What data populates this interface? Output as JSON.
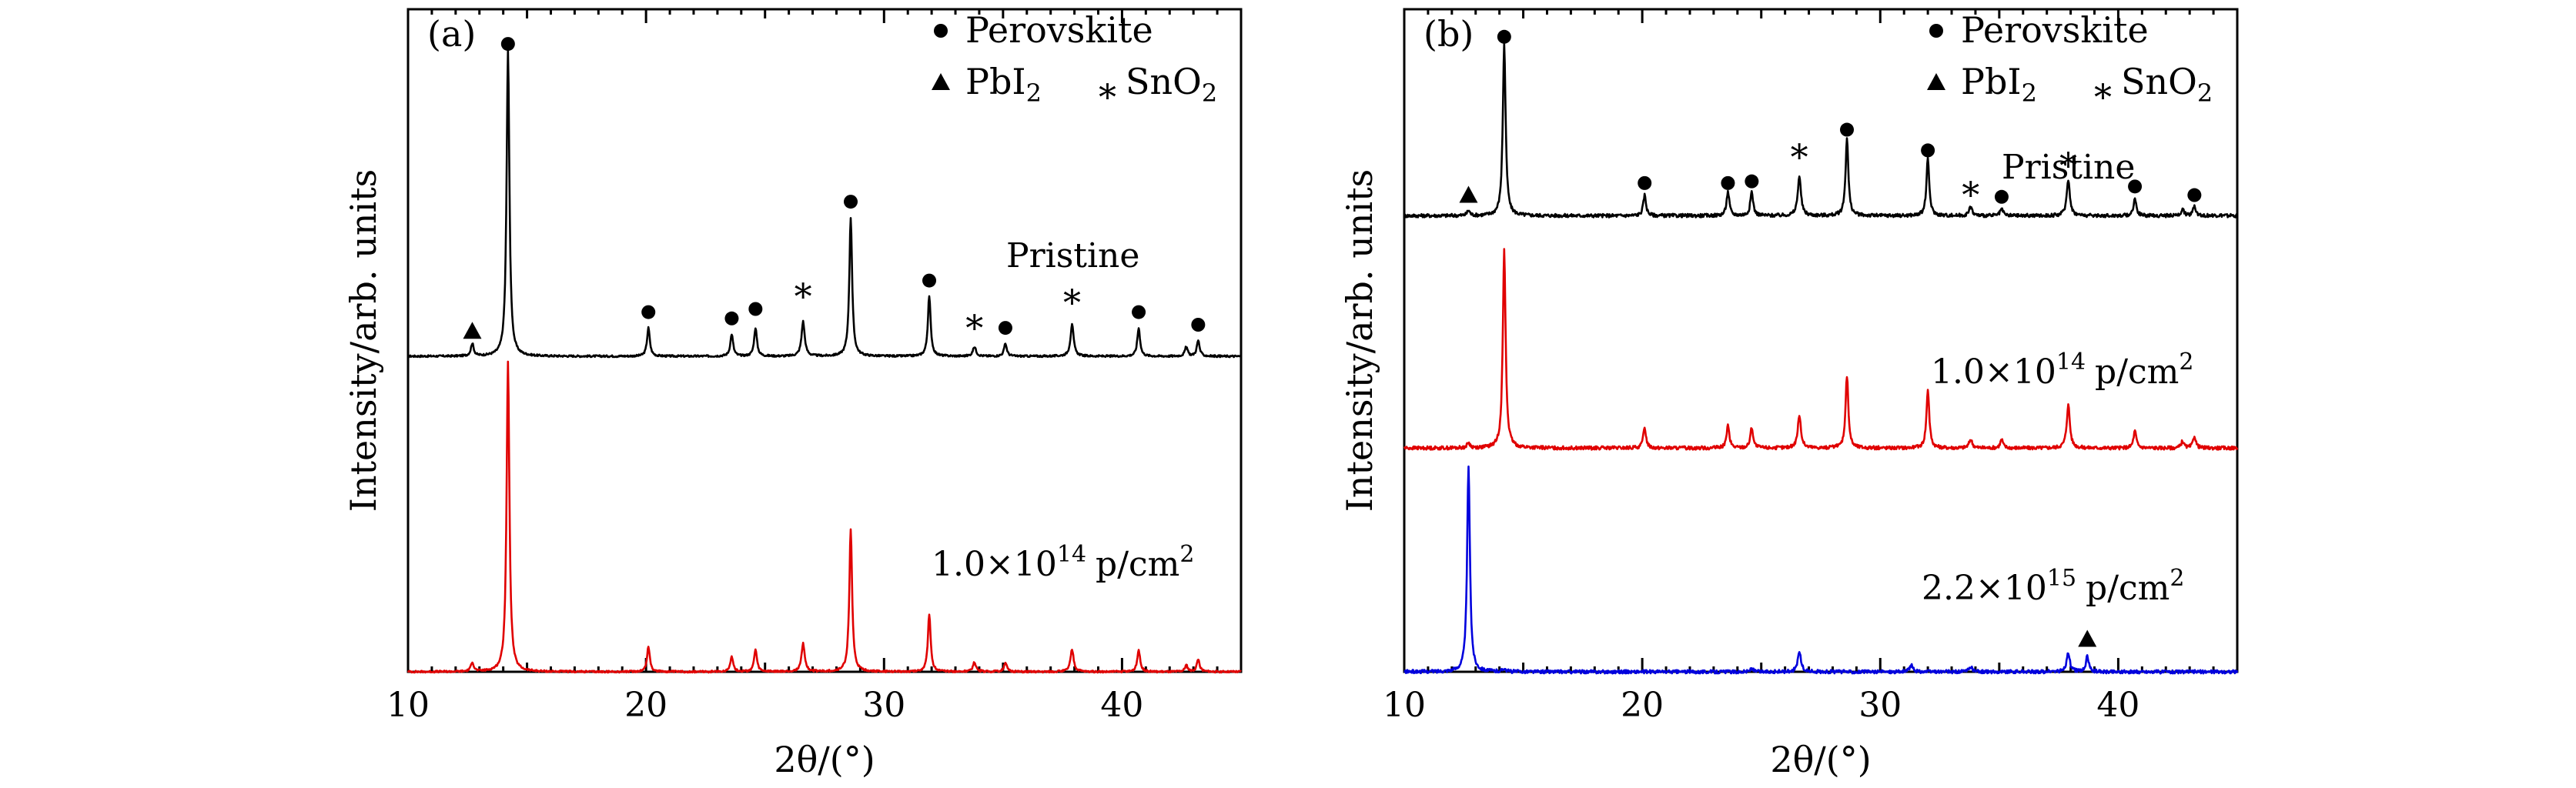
{
  "chart_data": [
    {
      "panel": "(a)",
      "type": "line",
      "xlabel": "2θ/(°)",
      "ylabel": "Intensity/arb. units",
      "xlim": [
        10,
        45
      ],
      "ylim": [
        0,
        2.1
      ],
      "xticks": [
        10,
        20,
        30,
        40
      ],
      "legend": {
        "placement": "top-right",
        "entries": [
          {
            "marker": "circle",
            "label": "Perovskite"
          },
          {
            "marker": "triangle",
            "label": "PbI",
            "subscript": "2"
          },
          {
            "marker": "asterisk",
            "label": "SnO",
            "subscript": "2"
          }
        ]
      },
      "series": [
        {
          "name": "Pristine",
          "label_parts": {
            "text": "Pristine"
          },
          "color": "#000000",
          "baseline": 1.0,
          "noise": 0.003,
          "peaks": [
            {
              "x": 12.7,
              "h": 0.04,
              "w": 0.07
            },
            {
              "x": 14.2,
              "h": 0.97,
              "w": 0.07
            },
            {
              "x": 20.1,
              "h": 0.09,
              "w": 0.07
            },
            {
              "x": 23.6,
              "h": 0.07,
              "w": 0.07
            },
            {
              "x": 24.6,
              "h": 0.09,
              "w": 0.07
            },
            {
              "x": 26.6,
              "h": 0.11,
              "w": 0.08
            },
            {
              "x": 28.6,
              "h": 0.44,
              "w": 0.07
            },
            {
              "x": 31.9,
              "h": 0.19,
              "w": 0.07
            },
            {
              "x": 33.8,
              "h": 0.03,
              "w": 0.08
            },
            {
              "x": 35.1,
              "h": 0.04,
              "w": 0.07
            },
            {
              "x": 37.9,
              "h": 0.1,
              "w": 0.08
            },
            {
              "x": 40.7,
              "h": 0.09,
              "w": 0.07
            },
            {
              "x": 42.7,
              "h": 0.03,
              "w": 0.07
            },
            {
              "x": 43.2,
              "h": 0.05,
              "w": 0.07
            }
          ],
          "markers": [
            {
              "x": 12.7,
              "y": 1.08,
              "type": "triangle"
            },
            {
              "x": 14.2,
              "y": 1.99,
              "type": "circle"
            },
            {
              "x": 20.1,
              "y": 1.14,
              "type": "circle"
            },
            {
              "x": 23.6,
              "y": 1.12,
              "type": "circle"
            },
            {
              "x": 24.6,
              "y": 1.15,
              "type": "circle"
            },
            {
              "x": 26.6,
              "y": 1.2,
              "type": "asterisk"
            },
            {
              "x": 28.6,
              "y": 1.49,
              "type": "circle"
            },
            {
              "x": 31.9,
              "y": 1.24,
              "type": "circle"
            },
            {
              "x": 33.8,
              "y": 1.1,
              "type": "asterisk"
            },
            {
              "x": 35.1,
              "y": 1.09,
              "type": "circle"
            },
            {
              "x": 37.9,
              "y": 1.18,
              "type": "asterisk"
            },
            {
              "x": 40.7,
              "y": 1.14,
              "type": "circle"
            },
            {
              "x": 43.2,
              "y": 1.1,
              "type": "circle"
            }
          ]
        },
        {
          "name": "1.0×10^14 p/cm^2",
          "label_parts": {
            "mantissa": "1.0",
            "times": "×",
            "base": "10",
            "exponent": "14",
            "unit": "p/cm",
            "unit_exp": "2"
          },
          "color": "#e00000",
          "baseline": 0.0,
          "noise": 0.003,
          "peaks": [
            {
              "x": 12.7,
              "h": 0.03,
              "w": 0.07
            },
            {
              "x": 14.2,
              "h": 0.98,
              "w": 0.07
            },
            {
              "x": 20.1,
              "h": 0.08,
              "w": 0.07
            },
            {
              "x": 23.6,
              "h": 0.05,
              "w": 0.07
            },
            {
              "x": 24.6,
              "h": 0.07,
              "w": 0.07
            },
            {
              "x": 26.6,
              "h": 0.09,
              "w": 0.08
            },
            {
              "x": 28.6,
              "h": 0.45,
              "w": 0.07
            },
            {
              "x": 31.9,
              "h": 0.18,
              "w": 0.07
            },
            {
              "x": 33.8,
              "h": 0.03,
              "w": 0.08
            },
            {
              "x": 35.1,
              "h": 0.03,
              "w": 0.07
            },
            {
              "x": 37.9,
              "h": 0.07,
              "w": 0.08
            },
            {
              "x": 40.7,
              "h": 0.07,
              "w": 0.07
            },
            {
              "x": 42.7,
              "h": 0.02,
              "w": 0.07
            },
            {
              "x": 43.2,
              "h": 0.04,
              "w": 0.07
            }
          ],
          "markers": []
        }
      ]
    },
    {
      "panel": "(b)",
      "type": "line",
      "xlabel": "2θ/(°)",
      "ylabel": "Intensity/arb. units",
      "xlim": [
        10,
        45
      ],
      "ylim": [
        0,
        3.85
      ],
      "xticks": [
        10,
        20,
        30,
        40
      ],
      "legend": {
        "placement": "top-right",
        "entries": [
          {
            "marker": "circle",
            "label": "Perovskite"
          },
          {
            "marker": "triangle",
            "label": "PbI",
            "subscript": "2"
          },
          {
            "marker": "asterisk",
            "label": "SnO",
            "subscript": "2"
          }
        ]
      },
      "series": [
        {
          "name": "Pristine",
          "label_parts": {
            "text": "Pristine"
          },
          "color": "#000000",
          "baseline": 2.65,
          "noise": 0.01,
          "peaks": [
            {
              "x": 12.7,
              "h": 0.03,
              "w": 0.07
            },
            {
              "x": 14.2,
              "h": 1.0,
              "w": 0.07
            },
            {
              "x": 20.1,
              "h": 0.12,
              "w": 0.07
            },
            {
              "x": 23.6,
              "h": 0.14,
              "w": 0.07
            },
            {
              "x": 24.6,
              "h": 0.14,
              "w": 0.07
            },
            {
              "x": 26.6,
              "h": 0.23,
              "w": 0.08
            },
            {
              "x": 28.6,
              "h": 0.45,
              "w": 0.07
            },
            {
              "x": 32.0,
              "h": 0.33,
              "w": 0.07
            },
            {
              "x": 33.8,
              "h": 0.05,
              "w": 0.08
            },
            {
              "x": 35.1,
              "h": 0.04,
              "w": 0.07
            },
            {
              "x": 37.9,
              "h": 0.21,
              "w": 0.08
            },
            {
              "x": 40.7,
              "h": 0.1,
              "w": 0.07
            },
            {
              "x": 42.7,
              "h": 0.04,
              "w": 0.07
            },
            {
              "x": 43.2,
              "h": 0.06,
              "w": 0.07
            }
          ],
          "markers": [
            {
              "x": 12.7,
              "y": 2.77,
              "type": "triangle"
            },
            {
              "x": 14.2,
              "y": 3.69,
              "type": "circle"
            },
            {
              "x": 20.1,
              "y": 2.84,
              "type": "circle"
            },
            {
              "x": 23.6,
              "y": 2.84,
              "type": "circle"
            },
            {
              "x": 24.6,
              "y": 2.85,
              "type": "circle"
            },
            {
              "x": 26.6,
              "y": 3.01,
              "type": "asterisk"
            },
            {
              "x": 28.6,
              "y": 3.15,
              "type": "circle"
            },
            {
              "x": 32.0,
              "y": 3.03,
              "type": "circle"
            },
            {
              "x": 33.8,
              "y": 2.79,
              "type": "asterisk"
            },
            {
              "x": 35.1,
              "y": 2.76,
              "type": "circle"
            },
            {
              "x": 37.9,
              "y": 2.96,
              "type": "asterisk"
            },
            {
              "x": 40.7,
              "y": 2.82,
              "type": "circle"
            },
            {
              "x": 43.2,
              "y": 2.77,
              "type": "circle"
            }
          ]
        },
        {
          "name": "1.0×10^14 p/cm^2",
          "label_parts": {
            "mantissa": "1.0",
            "times": "×",
            "base": "10",
            "exponent": "14",
            "unit": "p/cm",
            "unit_exp": "2"
          },
          "color": "#e00000",
          "baseline": 1.3,
          "noise": 0.01,
          "peaks": [
            {
              "x": 12.7,
              "h": 0.03,
              "w": 0.07
            },
            {
              "x": 14.2,
              "h": 1.15,
              "w": 0.07
            },
            {
              "x": 20.1,
              "h": 0.12,
              "w": 0.07
            },
            {
              "x": 23.6,
              "h": 0.13,
              "w": 0.07
            },
            {
              "x": 24.6,
              "h": 0.12,
              "w": 0.07
            },
            {
              "x": 26.6,
              "h": 0.19,
              "w": 0.08
            },
            {
              "x": 28.6,
              "h": 0.42,
              "w": 0.07
            },
            {
              "x": 32.0,
              "h": 0.34,
              "w": 0.07
            },
            {
              "x": 33.8,
              "h": 0.05,
              "w": 0.08
            },
            {
              "x": 35.1,
              "h": 0.05,
              "w": 0.07
            },
            {
              "x": 37.9,
              "h": 0.25,
              "w": 0.08
            },
            {
              "x": 40.7,
              "h": 0.1,
              "w": 0.07
            },
            {
              "x": 42.7,
              "h": 0.04,
              "w": 0.07
            },
            {
              "x": 43.2,
              "h": 0.07,
              "w": 0.07
            }
          ],
          "markers": []
        },
        {
          "name": "2.2×10^15 p/cm^2",
          "label_parts": {
            "mantissa": "2.2",
            "times": "×",
            "base": "10",
            "exponent": "15",
            "unit": "p/cm",
            "unit_exp": "2"
          },
          "color": "#0000dd",
          "baseline": 0.0,
          "noise": 0.01,
          "peaks": [
            {
              "x": 12.7,
              "h": 1.2,
              "w": 0.07
            },
            {
              "x": 14.2,
              "h": 0.02,
              "w": 0.07
            },
            {
              "x": 24.6,
              "h": 0.02,
              "w": 0.07
            },
            {
              "x": 26.6,
              "h": 0.12,
              "w": 0.08
            },
            {
              "x": 31.3,
              "h": 0.04,
              "w": 0.08
            },
            {
              "x": 33.8,
              "h": 0.03,
              "w": 0.08
            },
            {
              "x": 37.9,
              "h": 0.11,
              "w": 0.08
            },
            {
              "x": 38.7,
              "h": 0.09,
              "w": 0.07
            }
          ],
          "markers": [
            {
              "x": 38.7,
              "y": 0.19,
              "type": "triangle"
            }
          ]
        }
      ]
    }
  ]
}
